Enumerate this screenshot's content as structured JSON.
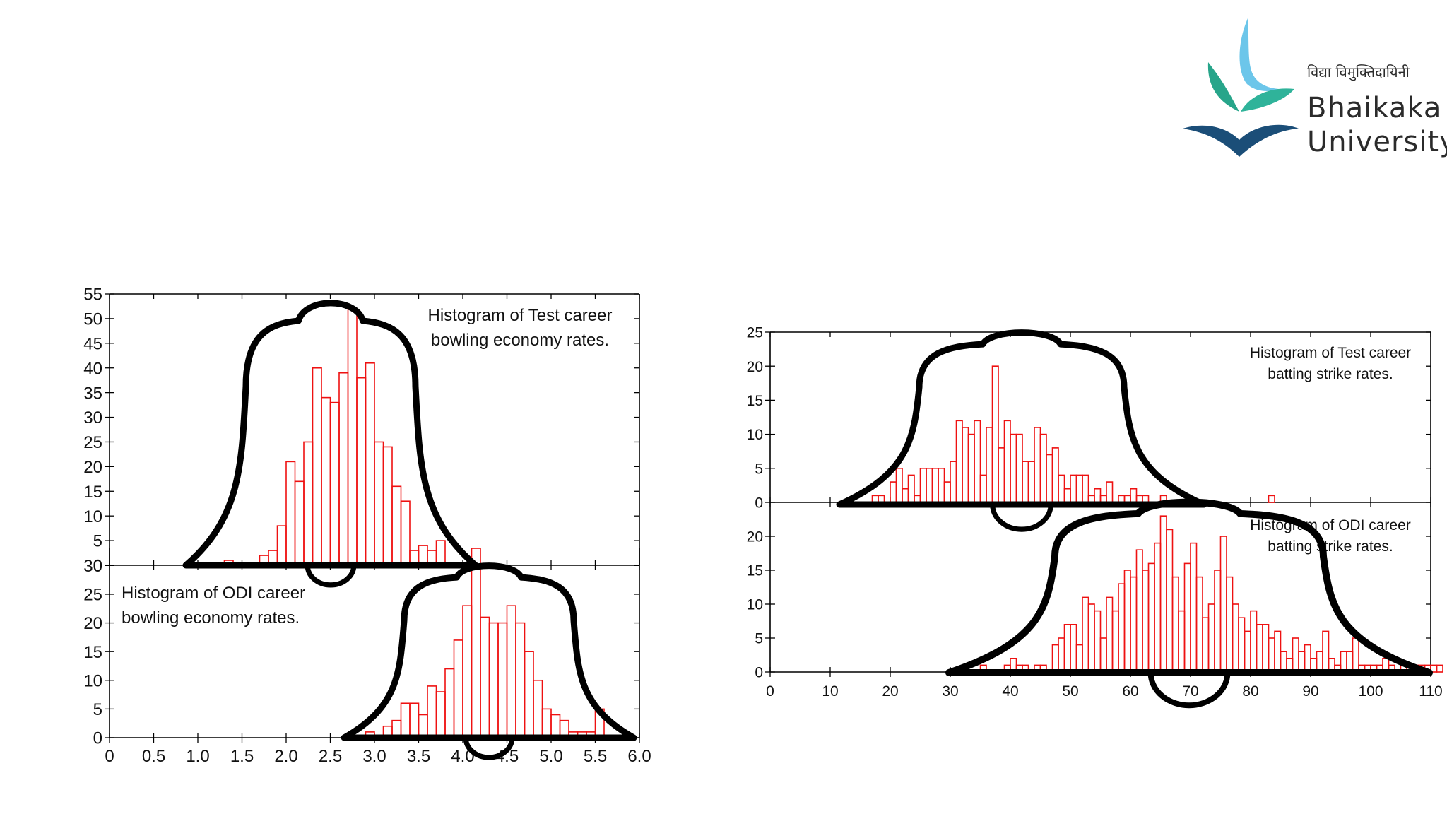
{
  "logo": {
    "tagline": "विद्या विमुक्तिदायिनी",
    "name_line1": "Bhaikaka",
    "name_line2": "University",
    "color_light_blue": "#6cc6ea",
    "color_green": "#27a58a",
    "color_navy": "#1b4e78"
  },
  "chart_data": [
    {
      "id": "test-bowling",
      "type": "bar",
      "title": "Histogram of Test career bowling economy rates.",
      "title_lines": [
        "Histogram of Test career",
        "bowling economy rates."
      ],
      "bin_start": 1.3,
      "bin_width": 0.1,
      "values": [
        1,
        0,
        0,
        0,
        2,
        3,
        8,
        21,
        17,
        25,
        40,
        34,
        33,
        39,
        52,
        38,
        41,
        25,
        24,
        16,
        13,
        3,
        4,
        3,
        5
      ],
      "ylim": [
        0,
        55
      ],
      "yticks": [
        0,
        5,
        10,
        15,
        20,
        25,
        30,
        35,
        40,
        45,
        50,
        55
      ],
      "xlim": [
        0,
        6
      ],
      "show_x_labels": false,
      "legend": "top-right"
    },
    {
      "id": "odi-bowling",
      "type": "bar",
      "title": "Histogram of ODI career bowling economy rates.",
      "title_lines": [
        "Histogram of ODI career",
        "bowling economy rates."
      ],
      "bin_start": 2.9,
      "bin_width": 0.1,
      "values": [
        1,
        0,
        2,
        3,
        6,
        6,
        4,
        9,
        8,
        12,
        17,
        23,
        33,
        21,
        20,
        20,
        23,
        20,
        15,
        10,
        5,
        4,
        3,
        1,
        1,
        1,
        5
      ],
      "ylim": [
        0,
        33
      ],
      "yticks": [
        0,
        5,
        10,
        15,
        20,
        25,
        30
      ],
      "xlim": [
        0,
        6
      ],
      "xticks": [
        "0",
        "0.5",
        "1.0",
        "1.5",
        "2.0",
        "2.5",
        "3.0",
        "3.5",
        "4.0",
        "4.5",
        "5.0",
        "5.5",
        "6.0"
      ],
      "xtick_values": [
        0,
        0.5,
        1,
        1.5,
        2,
        2.5,
        3,
        3.5,
        4,
        4.5,
        5,
        5.5,
        6
      ],
      "show_x_labels": true,
      "legend": "top-left"
    },
    {
      "id": "test-batting",
      "type": "bar",
      "title": "Histogram of Test career batting strike rates.",
      "title_lines": [
        "Histogram of Test career",
        "batting strike rates."
      ],
      "bin_start": 17,
      "bin_width": 1,
      "values": [
        1,
        1,
        0,
        3,
        5,
        2,
        4,
        1,
        5,
        5,
        5,
        5,
        3,
        6,
        12,
        11,
        10,
        12,
        4,
        11,
        20,
        8,
        12,
        10,
        10,
        6,
        6,
        11,
        10,
        7,
        8,
        4,
        2,
        4,
        4,
        4,
        1,
        2,
        1,
        3,
        0,
        1,
        1,
        2,
        1,
        1,
        0,
        0,
        1,
        0,
        0,
        0,
        0,
        0,
        0,
        0,
        0,
        0,
        0,
        0,
        0,
        0,
        0,
        0,
        0,
        0,
        1
      ],
      "ylim": [
        0,
        25
      ],
      "yticks": [
        0,
        5,
        10,
        15,
        20,
        25
      ],
      "xlim": [
        0,
        110
      ],
      "show_x_labels": false,
      "legend": "top-right"
    },
    {
      "id": "odi-batting",
      "type": "bar",
      "title": "Histogram of ODI career batting strike rates.",
      "title_lines": [
        "Histogram of ODI career",
        "batting strike rates."
      ],
      "bin_start": 32,
      "bin_width": 1,
      "values": [
        1,
        0,
        0,
        1,
        0,
        0,
        0,
        1,
        2,
        1,
        1,
        0,
        1,
        1,
        0,
        4,
        5,
        7,
        7,
        4,
        11,
        10,
        9,
        5,
        11,
        9,
        13,
        15,
        14,
        18,
        15,
        16,
        19,
        23,
        21,
        14,
        9,
        16,
        19,
        14,
        8,
        10,
        15,
        20,
        14,
        10,
        8,
        6,
        9,
        7,
        7,
        5,
        6,
        3,
        2,
        5,
        3,
        4,
        2,
        3,
        6,
        2,
        1,
        3,
        3,
        5,
        1,
        1,
        1,
        1,
        2,
        1,
        0,
        1,
        1,
        1,
        1,
        1,
        1,
        1
      ],
      "ylim": [
        0,
        25
      ],
      "yticks": [
        0,
        5,
        10,
        15,
        20
      ],
      "xlim": [
        0,
        110
      ],
      "xticks": [
        "0",
        "10",
        "20",
        "30",
        "40",
        "50",
        "60",
        "70",
        "80",
        "90",
        "100",
        "110"
      ],
      "xtick_values": [
        0,
        10,
        20,
        30,
        40,
        50,
        60,
        70,
        80,
        90,
        100,
        110
      ],
      "show_x_labels": true,
      "legend": "top-right"
    }
  ]
}
